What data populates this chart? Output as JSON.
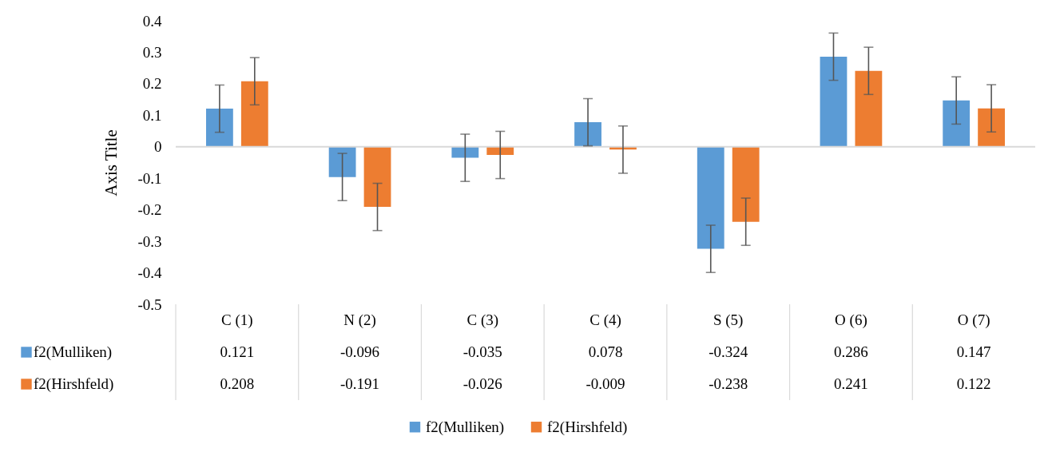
{
  "chart_data": {
    "type": "bar",
    "ylabel": "Axis Title",
    "categories": [
      "C (1)",
      "N (2)",
      "C (3)",
      "C (4)",
      "S (5)",
      "O (6)",
      "O (7)"
    ],
    "series": [
      {
        "name": "f2(Mulliken)",
        "color": "#5b9bd5",
        "values": [
          0.121,
          -0.096,
          -0.035,
          0.078,
          -0.324,
          0.286,
          0.147
        ],
        "errors": [
          0.075,
          0.075,
          0.075,
          0.075,
          0.075,
          0.075,
          0.075
        ]
      },
      {
        "name": "f2(Hirshfeld)",
        "color": "#ed7d31",
        "values": [
          0.208,
          -0.191,
          -0.026,
          -0.009,
          -0.238,
          0.241,
          0.122
        ],
        "errors": [
          0.075,
          0.075,
          0.075,
          0.075,
          0.075,
          0.075,
          0.075
        ]
      }
    ],
    "ylim": [
      -0.5,
      0.4
    ],
    "yticks": [
      -0.5,
      -0.4,
      -0.3,
      -0.2,
      -0.1,
      0,
      0.1,
      0.2,
      0.3,
      0.4
    ],
    "grid": false,
    "legend": "bottom",
    "data_labels": true,
    "ref_lines": [
      {
        "axis": "y",
        "value": 0,
        "color": "#d9d9d9"
      }
    ]
  }
}
